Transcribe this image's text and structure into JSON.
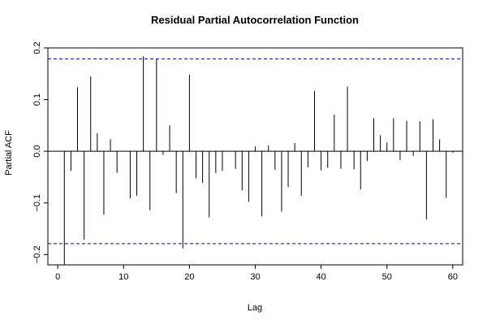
{
  "chart_data": {
    "type": "bar",
    "title": "Residual Partial Autocorrelation Function",
    "xlabel": "Lag",
    "ylabel": "Partial ACF",
    "xlim": [
      -1.5,
      61.5
    ],
    "ylim": [
      -0.22,
      0.2
    ],
    "x_ticks": [
      0,
      10,
      20,
      30,
      40,
      50,
      60
    ],
    "y_ticks": [
      -0.2,
      -0.1,
      0.0,
      0.1,
      0.2
    ],
    "y_tick_labels": [
      "−0.2",
      "−0.1",
      "0.0",
      "0.1",
      "0.2"
    ],
    "confidence_bounds": [
      0.179,
      -0.179
    ],
    "lags": [
      1,
      2,
      3,
      4,
      5,
      6,
      7,
      8,
      9,
      10,
      11,
      12,
      13,
      14,
      15,
      16,
      17,
      18,
      19,
      20,
      21,
      22,
      23,
      24,
      25,
      26,
      27,
      28,
      29,
      30,
      31,
      32,
      33,
      34,
      35,
      36,
      37,
      38,
      39,
      40,
      41,
      42,
      43,
      44,
      45,
      46,
      47,
      48,
      49,
      50,
      51,
      52,
      53,
      54,
      55,
      56,
      57,
      58,
      59,
      60
    ],
    "values": [
      -0.219,
      -0.038,
      0.124,
      -0.171,
      0.145,
      0.035,
      -0.123,
      0.023,
      -0.042,
      0.0,
      -0.091,
      -0.086,
      0.184,
      -0.114,
      0.178,
      -0.007,
      0.05,
      -0.081,
      -0.188,
      0.148,
      -0.052,
      -0.061,
      -0.128,
      -0.042,
      -0.038,
      0.0,
      -0.034,
      -0.076,
      -0.098,
      0.009,
      -0.126,
      0.011,
      -0.036,
      -0.117,
      -0.069,
      0.016,
      -0.086,
      -0.031,
      0.117,
      -0.037,
      -0.032,
      0.071,
      -0.034,
      0.125,
      -0.035,
      -0.074,
      -0.019,
      0.064,
      0.031,
      0.017,
      0.064,
      -0.017,
      0.059,
      -0.009,
      0.058,
      -0.132,
      0.062,
      0.023,
      -0.09,
      -0.003
    ],
    "colors": {
      "bars": "#000000",
      "bounds": "#0000cc",
      "axis": "#000000",
      "zero_line": "#000000"
    }
  }
}
